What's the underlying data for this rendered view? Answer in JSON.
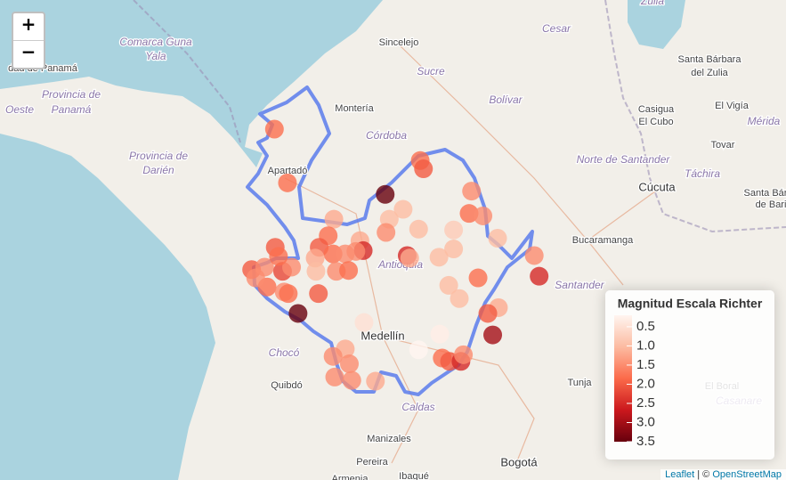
{
  "map_labels": [
    "Comarca Guna",
    "Yala",
    "dad de Panamá",
    "Provincia de",
    "Panamá",
    "Oeste",
    "Provincia de",
    "Darién",
    "Sincelejo",
    "Cesar",
    "Sucre",
    "Bolívar",
    "Montería",
    "Córdoba",
    "Apartadó",
    "Santa Bárbara",
    "del Zulia",
    "Zulia",
    "Casigua",
    "El Cubo",
    "El Vigía",
    "Mérida",
    "Tovar",
    "Norte de Santander",
    "Táchira",
    "Cúcuta",
    "Santa Bár",
    "de Bari",
    "Bucaramanga",
    "Santander",
    "Antioquia",
    "Medellín",
    "Chocó",
    "Quibdó",
    "Caldas",
    "Tunja",
    "El Boral",
    "Casanare",
    "Manizales",
    "Pereira",
    "Ibagué",
    "Bogotá",
    "Armenia"
  ],
  "zoom": {
    "in": "+",
    "out": "−"
  },
  "points": [
    {
      "lon": -76.9,
      "lat": 8.75,
      "magnitude": 1.8
    },
    {
      "lon": -76.74,
      "lat": 8.1,
      "magnitude": 1.8
    },
    {
      "lon": -75.11,
      "lat": 8.37,
      "magnitude": 1.8
    },
    {
      "lon": -75.07,
      "lat": 8.27,
      "magnitude": 2.0
    },
    {
      "lon": -75.54,
      "lat": 7.96,
      "magnitude": 3.5
    },
    {
      "lon": -75.49,
      "lat": 7.66,
      "magnitude": 1.0
    },
    {
      "lon": -75.32,
      "lat": 7.78,
      "magnitude": 1.0
    },
    {
      "lon": -76.17,
      "lat": 7.66,
      "magnitude": 1.2
    },
    {
      "lon": -74.48,
      "lat": 8.0,
      "magnitude": 1.5
    },
    {
      "lon": -74.51,
      "lat": 7.73,
      "magnitude": 1.8
    },
    {
      "lon": -74.34,
      "lat": 7.7,
      "magnitude": 1.5
    },
    {
      "lon": -74.7,
      "lat": 7.53,
      "magnitude": 0.8
    },
    {
      "lon": -74.7,
      "lat": 7.3,
      "magnitude": 1.0
    },
    {
      "lon": -74.16,
      "lat": 7.43,
      "magnitude": 1.0
    },
    {
      "lon": -73.71,
      "lat": 7.22,
      "magnitude": 1.5
    },
    {
      "lon": -73.65,
      "lat": 6.97,
      "magnitude": 2.5
    },
    {
      "lon": -75.53,
      "lat": 7.5,
      "magnitude": 1.5
    },
    {
      "lon": -75.85,
      "lat": 7.4,
      "magnitude": 1.2
    },
    {
      "lon": -75.81,
      "lat": 7.28,
      "magnitude": 2.5
    },
    {
      "lon": -76.24,
      "lat": 7.46,
      "magnitude": 1.8
    },
    {
      "lon": -76.35,
      "lat": 7.32,
      "magnitude": 2.0
    },
    {
      "lon": -76.18,
      "lat": 7.24,
      "magnitude": 1.8
    },
    {
      "lon": -76.03,
      "lat": 7.24,
      "magnitude": 1.5
    },
    {
      "lon": -76.4,
      "lat": 7.19,
      "magnitude": 1.2
    },
    {
      "lon": -76.89,
      "lat": 7.32,
      "magnitude": 2.0
    },
    {
      "lon": -77.18,
      "lat": 7.05,
      "magnitude": 2.0
    },
    {
      "lon": -77.02,
      "lat": 7.08,
      "magnitude": 1.5
    },
    {
      "lon": -76.8,
      "lat": 7.03,
      "magnitude": 2.2
    },
    {
      "lon": -76.69,
      "lat": 7.08,
      "magnitude": 1.5
    },
    {
      "lon": -76.99,
      "lat": 6.84,
      "magnitude": 1.8
    },
    {
      "lon": -76.78,
      "lat": 6.78,
      "magnitude": 1.5
    },
    {
      "lon": -76.73,
      "lat": 6.76,
      "magnitude": 1.8
    },
    {
      "lon": -76.39,
      "lat": 7.03,
      "magnitude": 1.0
    },
    {
      "lon": -76.14,
      "lat": 7.03,
      "magnitude": 1.5
    },
    {
      "lon": -76.36,
      "lat": 6.76,
      "magnitude": 2.0
    },
    {
      "lon": -76.61,
      "lat": 6.52,
      "magnitude": 3.5
    },
    {
      "lon": -75.27,
      "lat": 7.22,
      "magnitude": 2.5
    },
    {
      "lon": -75.24,
      "lat": 7.19,
      "magnitude": 1.2
    },
    {
      "lon": -74.88,
      "lat": 7.2,
      "magnitude": 1.0
    },
    {
      "lon": -75.13,
      "lat": 7.54,
      "magnitude": 1.0
    },
    {
      "lon": -74.4,
      "lat": 6.95,
      "magnitude": 1.8
    },
    {
      "lon": -74.76,
      "lat": 6.86,
      "magnitude": 1.0
    },
    {
      "lon": -74.63,
      "lat": 6.7,
      "magnitude": 1.0
    },
    {
      "lon": -74.15,
      "lat": 6.59,
      "magnitude": 1.2
    },
    {
      "lon": -74.28,
      "lat": 6.52,
      "magnitude": 2.0
    },
    {
      "lon": -74.22,
      "lat": 6.26,
      "magnitude": 3.0
    },
    {
      "lon": -75.8,
      "lat": 6.41,
      "magnitude": 0.5
    },
    {
      "lon": -74.87,
      "lat": 6.27,
      "magnitude": 0.3
    },
    {
      "lon": -75.13,
      "lat": 6.08,
      "magnitude": 0.2
    },
    {
      "lon": -76.03,
      "lat": 6.09,
      "magnitude": 1.2
    },
    {
      "lon": -75.98,
      "lat": 5.91,
      "magnitude": 1.5
    },
    {
      "lon": -76.18,
      "lat": 6.0,
      "magnitude": 1.5
    },
    {
      "lon": -76.16,
      "lat": 5.75,
      "magnitude": 1.5
    },
    {
      "lon": -75.95,
      "lat": 5.71,
      "magnitude": 1.5
    },
    {
      "lon": -75.66,
      "lat": 5.7,
      "magnitude": 1.2
    },
    {
      "lon": -74.84,
      "lat": 5.98,
      "magnitude": 1.8
    },
    {
      "lon": -74.75,
      "lat": 5.94,
      "magnitude": 2.0
    },
    {
      "lon": -74.61,
      "lat": 5.94,
      "magnitude": 2.5
    },
    {
      "lon": -74.58,
      "lat": 6.02,
      "magnitude": 1.5
    },
    {
      "lon": -77.13,
      "lat": 6.95,
      "magnitude": 1.5
    },
    {
      "lon": -75.9,
      "lat": 7.27,
      "magnitude": 1.5
    },
    {
      "lon": -75.99,
      "lat": 7.04,
      "magnitude": 1.8
    },
    {
      "lon": -76.85,
      "lat": 7.21,
      "magnitude": 1.8
    }
  ],
  "legend": {
    "title": "Magnitud Escala Richter",
    "limits": [
      0.2,
      3.5
    ],
    "colors": [
      "#fff5f0",
      "#fcbba1",
      "#fb6a4a",
      "#cb181d",
      "#67000d"
    ],
    "ticks": [
      0.5,
      {
        "value": 1,
        "label": "1.0"
      },
      1.5,
      {
        "value": 2,
        "label": "2.0"
      },
      2.5,
      {
        "value": 3,
        "label": "3.0"
      },
      3.5
    ]
  },
  "attribution": {
    "leaflet": "Leaflet",
    "separator": "| ©",
    "osm": "OpenStreetMap"
  }
}
